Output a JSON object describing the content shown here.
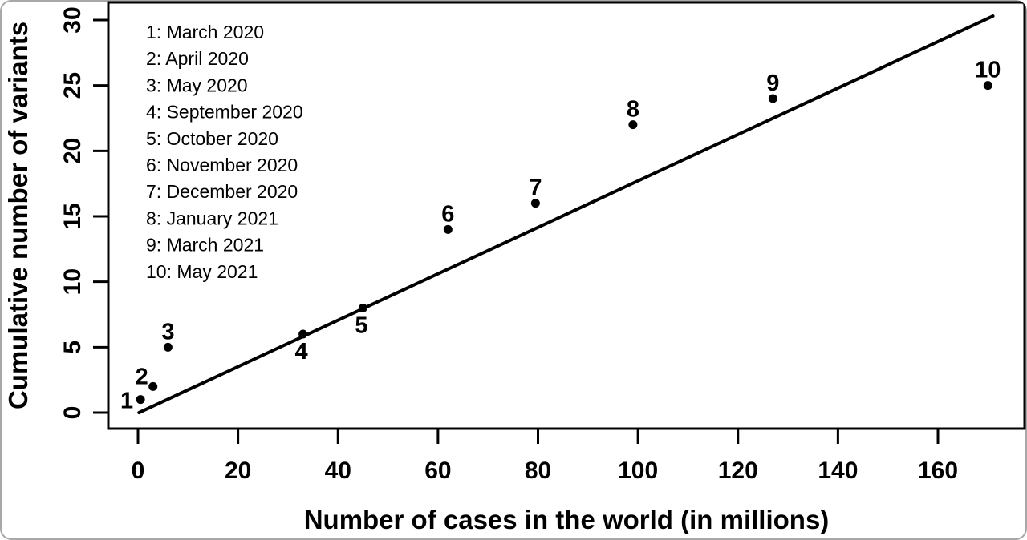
{
  "chart_data": {
    "type": "scatter",
    "title": "",
    "xlabel": "Number of cases in the world (in millions)",
    "ylabel": "Cumulative number of variants",
    "x_ticks": [
      0,
      20,
      40,
      60,
      80,
      100,
      120,
      140,
      160
    ],
    "y_ticks": [
      0,
      5,
      10,
      15,
      20,
      25,
      30
    ],
    "xlim": [
      0,
      177
    ],
    "ylim": [
      0,
      31.4
    ],
    "grid": "off",
    "legend_position": "top-left-inside",
    "points": [
      {
        "id": "1",
        "month": "March 2020",
        "x": 0.5,
        "y": 1,
        "label_pos": "left"
      },
      {
        "id": "2",
        "month": "April 2020",
        "x": 3,
        "y": 2,
        "label_pos": "above-left"
      },
      {
        "id": "3",
        "month": "May 2020",
        "x": 6,
        "y": 5,
        "label_pos": "above"
      },
      {
        "id": "4",
        "month": "September 2020",
        "x": 33,
        "y": 6,
        "label_pos": "below"
      },
      {
        "id": "5",
        "month": "October 2020",
        "x": 45,
        "y": 8,
        "label_pos": "below"
      },
      {
        "id": "6",
        "month": "November 2020",
        "x": 62,
        "y": 14,
        "label_pos": "above"
      },
      {
        "id": "7",
        "month": "December 2020",
        "x": 79.5,
        "y": 16,
        "label_pos": "above"
      },
      {
        "id": "8",
        "month": "January 2021",
        "x": 99,
        "y": 22,
        "label_pos": "above"
      },
      {
        "id": "9",
        "month": "March 2021",
        "x": 127,
        "y": 24,
        "label_pos": "above"
      },
      {
        "id": "10",
        "month": "May 2021",
        "x": 170,
        "y": 25,
        "label_pos": "above"
      }
    ],
    "legend_separator": ": ",
    "fit_line": {
      "x1": 0.2,
      "y1": 0.0,
      "x2": 171,
      "y2": 30.3
    },
    "colors": {
      "points": "#000000",
      "fit_line": "#000000",
      "axis": "#000000",
      "text": "#000000",
      "background": "#ffffff",
      "outer_border": "#a8a8a8"
    }
  }
}
